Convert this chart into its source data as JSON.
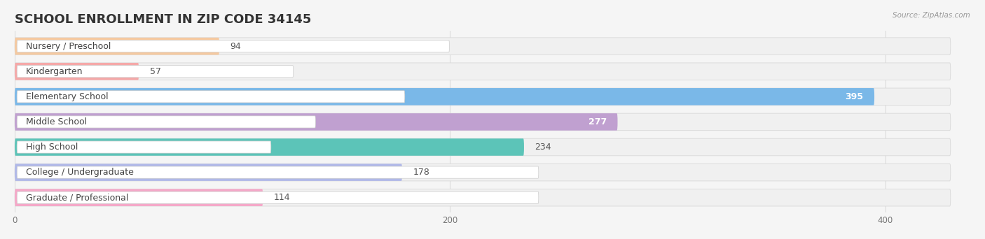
{
  "title": "SCHOOL ENROLLMENT IN ZIP CODE 34145",
  "source": "Source: ZipAtlas.com",
  "categories": [
    "Nursery / Preschool",
    "Kindergarten",
    "Elementary School",
    "Middle School",
    "High School",
    "College / Undergraduate",
    "Graduate / Professional"
  ],
  "values": [
    94,
    57,
    395,
    277,
    234,
    178,
    114
  ],
  "bar_colors": [
    "#f5c9a0",
    "#f5a8a8",
    "#7ab8e8",
    "#c0a0d0",
    "#5cc4b8",
    "#b0b8e8",
    "#f5a8c8"
  ],
  "label_bg_colors": [
    "#f5c9a0",
    "#f5a8a8",
    "#7ab8e8",
    "#c0a0d0",
    "#5cc4b8",
    "#b0b8e8",
    "#f5a8c8"
  ],
  "xlim": [
    0,
    430
  ],
  "xticks": [
    0,
    200,
    400
  ],
  "background_color": "#f5f5f5",
  "row_bg_color": "#efefef",
  "title_fontsize": 13,
  "label_fontsize": 9,
  "value_fontsize": 9
}
